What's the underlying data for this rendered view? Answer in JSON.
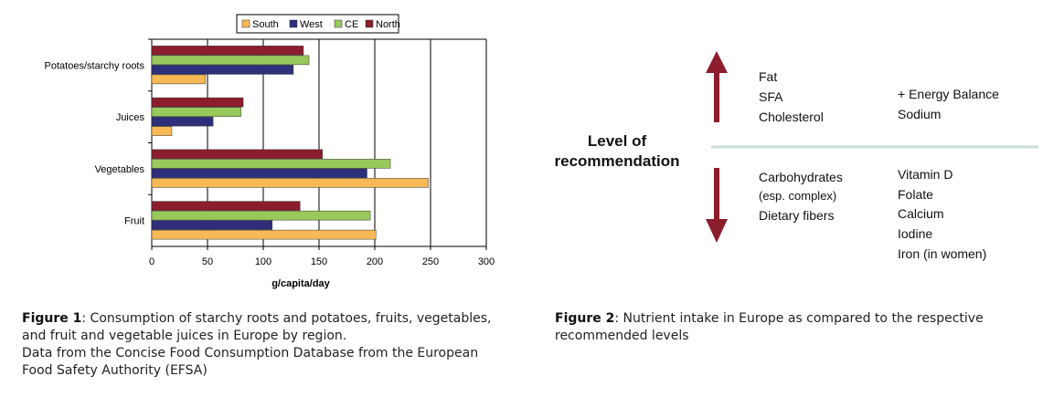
{
  "chart_data": {
    "type": "bar",
    "orientation": "horizontal",
    "categories": [
      "Potatoes/starchy roots",
      "Juices",
      "Vegetables",
      "Fruit"
    ],
    "series": [
      {
        "name": "South",
        "color": "#f7b955",
        "values": [
          48,
          18,
          248,
          201
        ]
      },
      {
        "name": "West",
        "color": "#2e2f7a",
        "values": [
          127,
          55,
          193,
          108
        ]
      },
      {
        "name": "CE",
        "color": "#99c85c",
        "values": [
          141,
          80,
          214,
          196
        ]
      },
      {
        "name": "North",
        "color": "#8b1d2c",
        "values": [
          136,
          82,
          153,
          133
        ]
      }
    ],
    "xlim": [
      0,
      300
    ],
    "xticks": [
      0,
      50,
      100,
      150,
      200,
      250,
      300
    ],
    "xlabel": "g/capita/day",
    "ylabel": "",
    "grid": "vertical",
    "legend_position": "top"
  },
  "captions": {
    "fig1_label": "Figure 1",
    "fig1_text": ": Consumption of starchy roots and potatoes, fruits, vegetables, and fruit and vegetable juices in Europe by region.",
    "fig1_source": "Data from the Concise Food Consumption Database from the European Food Safety Authority (EFSA)",
    "fig2_label": "Figure 2",
    "fig2_text": ": Nutrient intake in Europe as compared to the respective recommended levels"
  },
  "figure2": {
    "center_label_line1": "Level of",
    "center_label_line2": "recommendation",
    "above_col1": [
      "Fat",
      "SFA",
      "Cholesterol"
    ],
    "above_col2": [
      "+ Energy Balance",
      "Sodium"
    ],
    "below_col1": [
      "Carbohydrates",
      "(esp. complex)",
      "Dietary fibers"
    ],
    "below_col2": [
      "Vitamin D",
      "Folate",
      "Calcium",
      "Iodine",
      "Iron (in women)"
    ],
    "arrow_color": "#8b1d2c",
    "line_color": "#c9ddd9"
  }
}
